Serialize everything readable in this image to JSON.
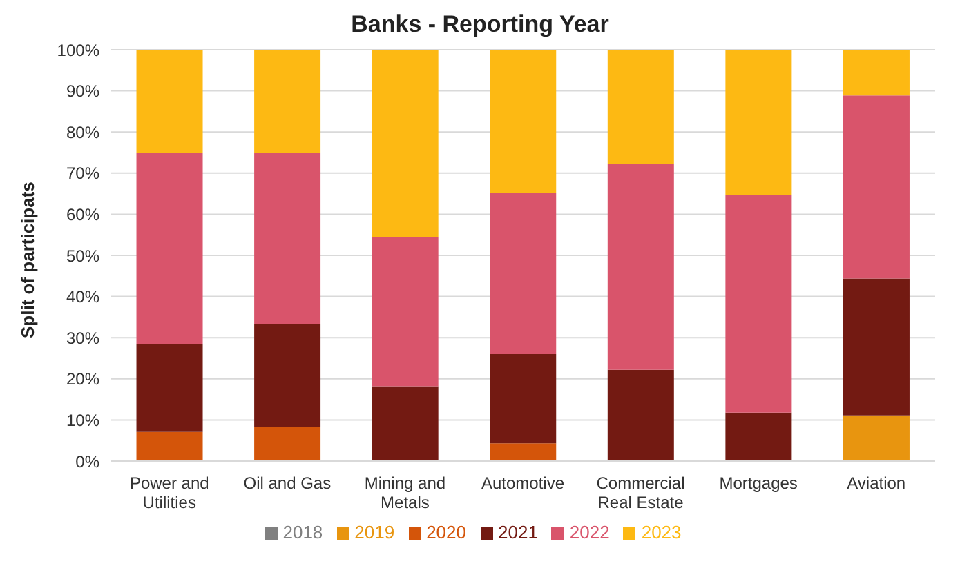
{
  "chart_data": {
    "type": "bar",
    "title": "Banks - Reporting Year",
    "ylabel": "Split of participats",
    "categories": [
      "Power and Utilities",
      "Oil and Gas",
      "Mining and Metals",
      "Automotive",
      "Commercial Real Estate",
      "Mortgages",
      "Aviation"
    ],
    "stacked": true,
    "series": [
      {
        "name": "2018",
        "color": "#808080",
        "values": [
          0,
          0,
          0,
          0,
          0,
          0,
          0
        ]
      },
      {
        "name": "2019",
        "color": "#e8950f",
        "values": [
          0,
          0,
          0,
          0,
          0,
          0,
          11.1
        ]
      },
      {
        "name": "2020",
        "color": "#d4550a",
        "values": [
          7.1,
          8.3,
          0,
          4.3,
          0,
          0,
          0
        ]
      },
      {
        "name": "2021",
        "color": "#731a12",
        "values": [
          21.4,
          25,
          18.2,
          21.7,
          22.2,
          11.8,
          33.3
        ]
      },
      {
        "name": "2022",
        "color": "#d9546b",
        "values": [
          46.5,
          41.7,
          36.3,
          39.2,
          50,
          52.9,
          44.5
        ]
      },
      {
        "name": "2023",
        "color": "#fdb913",
        "values": [
          25,
          25,
          45.5,
          34.8,
          27.8,
          35.3,
          11.1
        ]
      }
    ],
    "ylim": [
      0,
      100
    ],
    "yticks": [
      {
        "value": 0,
        "label": "0%"
      },
      {
        "value": 10,
        "label": "10%"
      },
      {
        "value": 20,
        "label": "20%"
      },
      {
        "value": 30,
        "label": "30%"
      },
      {
        "value": 40,
        "label": "40%"
      },
      {
        "value": 50,
        "label": "50%"
      },
      {
        "value": 60,
        "label": "60%"
      },
      {
        "value": 70,
        "label": "70%"
      },
      {
        "value": 80,
        "label": "80%"
      },
      {
        "value": 90,
        "label": "90%"
      },
      {
        "value": 100,
        "label": "100%"
      }
    ],
    "grid": "y",
    "legend": "bottom"
  }
}
